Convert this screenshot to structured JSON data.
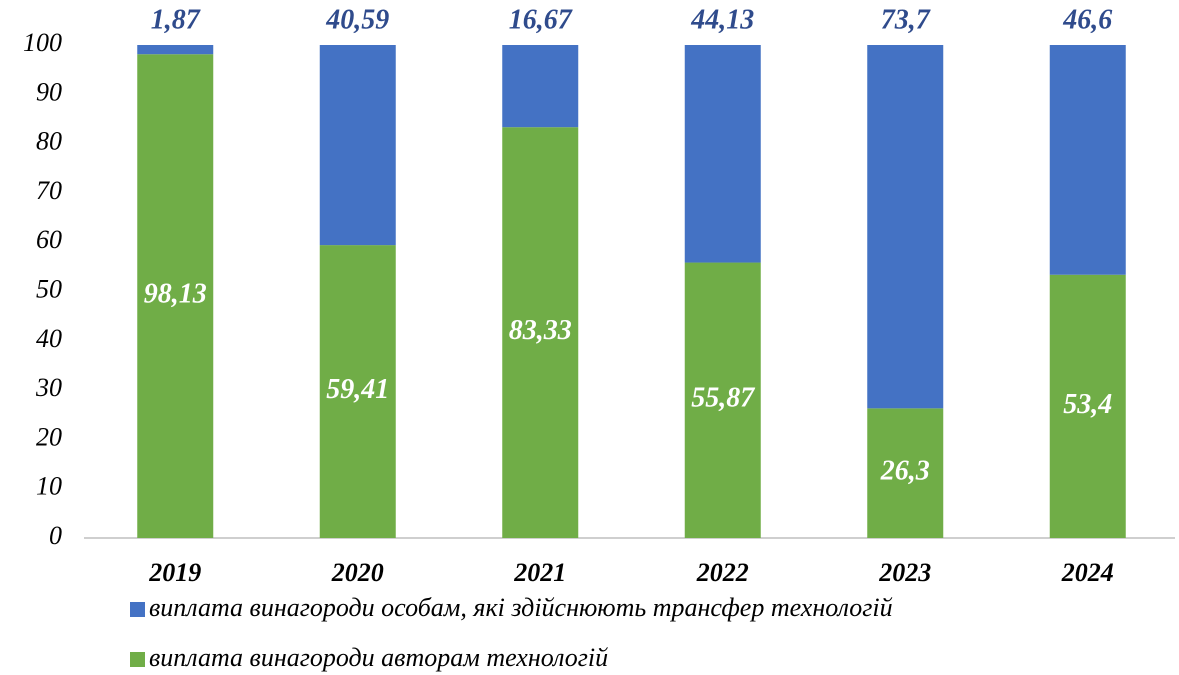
{
  "chart_data": {
    "type": "stacked_bar",
    "categories": [
      "2019",
      "2020",
      "2021",
      "2022",
      "2023",
      "2024"
    ],
    "series": [
      {
        "name": "виплата винагороди авторам технологій",
        "color": "#70ad47",
        "values": [
          98.13,
          59.41,
          83.33,
          55.87,
          26.3,
          53.4
        ],
        "value_labels": [
          "98,13",
          "59,41",
          "83,33",
          "55,87",
          "26,3",
          "53,4"
        ]
      },
      {
        "name": "виплата винагороди особам, які здійснюють трансфер технологій",
        "color": "#4472c4",
        "values": [
          1.87,
          40.59,
          16.67,
          44.13,
          73.7,
          46.6
        ],
        "value_labels": [
          "1,87",
          "40,59",
          "16,67",
          "44,13",
          "73,7",
          "46,6"
        ]
      }
    ],
    "ylim": [
      0,
      100
    ],
    "yticks": [
      0,
      10,
      20,
      30,
      40,
      50,
      60,
      70,
      80,
      90,
      100
    ],
    "grid": false
  }
}
